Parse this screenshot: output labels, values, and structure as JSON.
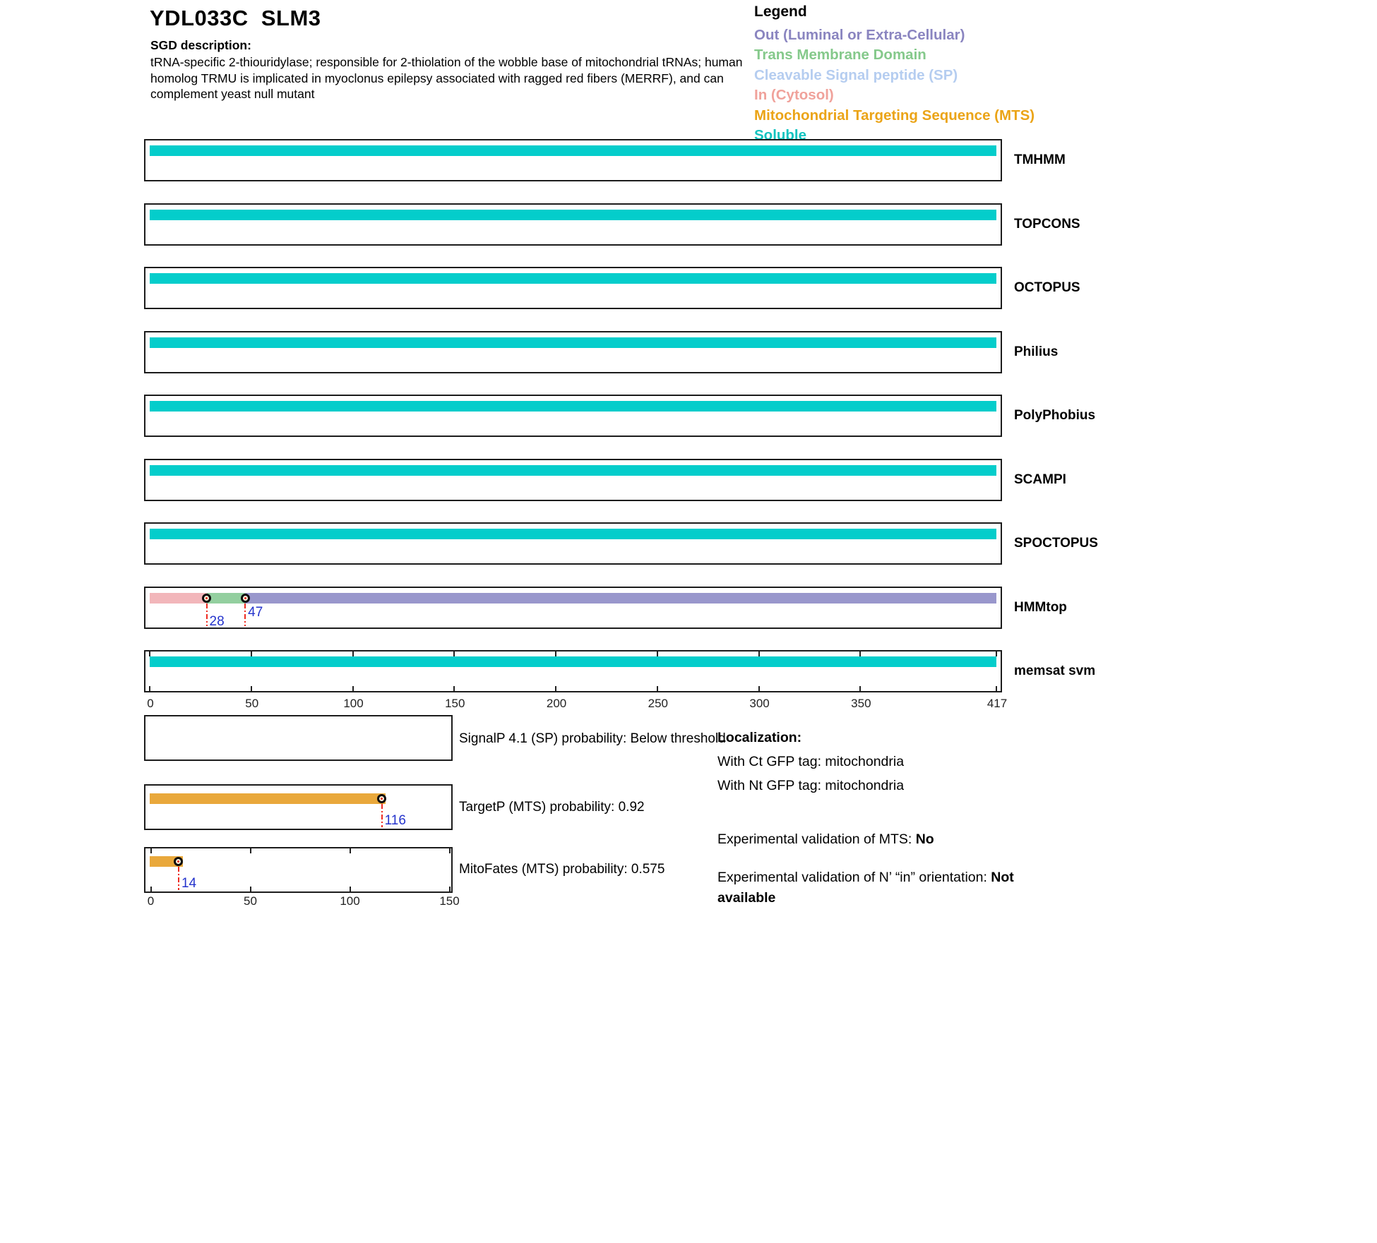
{
  "header": {
    "title": "YDL033C  SLM3",
    "sgd_heading": "SGD description:",
    "description_lines": [
      "tRNA-specific 2-thiouridylase; responsible for 2-thiolation of the wobble base of mitochondrial tRNAs; human",
      "homolog TRMU is implicated in myoclonus epilepsy associated with ragged red fibers (MERRF), and can",
      "complement yeast null mutant"
    ]
  },
  "legend": {
    "heading": "Legend",
    "items": [
      {
        "label": "Out (Luminal or Extra-Cellular)",
        "color": "#8a85c0"
      },
      {
        "label": "Trans Membrane Domain",
        "color": "#85c98b"
      },
      {
        "label": "Cleavable Signal peptide (SP)",
        "color": "#b5cdf0"
      },
      {
        "label": "In (Cytosol)",
        "color": "#f0a29b"
      },
      {
        "label": "Mitochondrial Targeting Sequence (MTS)",
        "color": "#eba417"
      },
      {
        "label": "Soluble",
        "color": "#11c3bf"
      }
    ]
  },
  "chart_data": {
    "type": "bar",
    "subtype": "protein-topology-prediction-tracks",
    "protein_length": 417,
    "main_axis_ticks": [
      0,
      50,
      100,
      150,
      200,
      250,
      300,
      350,
      417
    ],
    "region_colors": {
      "Soluble": "#04cdcb",
      "In (Cytosol)": "#f2b6ba",
      "Trans Membrane Domain": "#93cf9f",
      "Out (Luminal or Extra-Cellular)": "#9997cc",
      "Mitochondrial Targeting Sequence (MTS)": "#e9a83b"
    },
    "tracks": [
      {
        "name": "TMHMM",
        "segments": [
          {
            "region": "Soluble",
            "start": 0,
            "end": 417
          }
        ]
      },
      {
        "name": "TOPCONS",
        "segments": [
          {
            "region": "Soluble",
            "start": 0,
            "end": 417
          }
        ]
      },
      {
        "name": "OCTOPUS",
        "segments": [
          {
            "region": "Soluble",
            "start": 0,
            "end": 417
          }
        ]
      },
      {
        "name": "Philius",
        "segments": [
          {
            "region": "Soluble",
            "start": 0,
            "end": 417
          }
        ]
      },
      {
        "name": "PolyPhobius",
        "segments": [
          {
            "region": "Soluble",
            "start": 0,
            "end": 417
          }
        ]
      },
      {
        "name": "SCAMPI",
        "segments": [
          {
            "region": "Soluble",
            "start": 0,
            "end": 417
          }
        ]
      },
      {
        "name": "SPOCTOPUS",
        "segments": [
          {
            "region": "Soluble",
            "start": 0,
            "end": 417
          }
        ]
      },
      {
        "name": "HMMtop",
        "segments": [
          {
            "region": "In (Cytosol)",
            "start": 0,
            "end": 28
          },
          {
            "region": "Trans Membrane Domain",
            "start": 28,
            "end": 47
          },
          {
            "region": "Out (Luminal or Extra-Cellular)",
            "start": 47,
            "end": 417
          }
        ],
        "markers": [
          {
            "pos": 28,
            "label": "28",
            "label_level": "low"
          },
          {
            "pos": 47,
            "label": "47",
            "label_level": "high"
          }
        ]
      },
      {
        "name": "memsat svm",
        "segments": [
          {
            "region": "Soluble",
            "start": 0,
            "end": 417
          }
        ],
        "edge_ticks": true
      }
    ],
    "probability_plots": {
      "axis_max": 150,
      "axis_ticks": [
        0,
        50,
        100,
        150
      ],
      "plots": [
        {
          "name": "SignalP",
          "caption": "SignalP 4.1 (SP) probability: Below threshold",
          "bar": null
        },
        {
          "name": "TargetP",
          "caption": "TargetP (MTS) probability: 0.92",
          "bar": {
            "region": "Mitochondrial Targeting Sequence (MTS)",
            "start": 0,
            "end": 118,
            "marker": 116,
            "marker_label": "116"
          }
        },
        {
          "name": "MitoFates",
          "caption": "MitoFates (MTS) probability: 0.575",
          "edge_ticks": true,
          "bar": {
            "region": "Mitochondrial Targeting Sequence (MTS)",
            "start": 0,
            "end": 16,
            "marker": 14,
            "marker_label": "14"
          }
        }
      ]
    }
  },
  "localization": {
    "heading": "Localization:",
    "ct_line": "With Ct GFP tag: mitochondria",
    "nt_line": "With Nt GFP tag: mitochondria",
    "mts_label": "Experimental validation of MTS: ",
    "mts_value": "No",
    "orientation_label": "Experimental validation of N’ “in” orientation: ",
    "orientation_value": "Not available"
  }
}
